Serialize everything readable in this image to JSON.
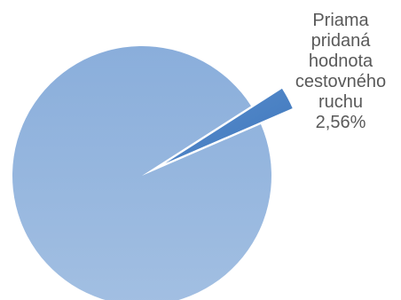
{
  "chart_data": {
    "type": "pie",
    "slices": [
      {
        "label_lines": [],
        "value": 97.44,
        "color": "#95B3D7",
        "exploded": false
      },
      {
        "label_lines": [
          "Priama",
          "pridaná",
          "hodnota",
          "cestovného",
          "ruchu",
          "2,56%"
        ],
        "value": 2.56,
        "color": "#4F81BD",
        "exploded": true
      }
    ],
    "legend": "none"
  }
}
